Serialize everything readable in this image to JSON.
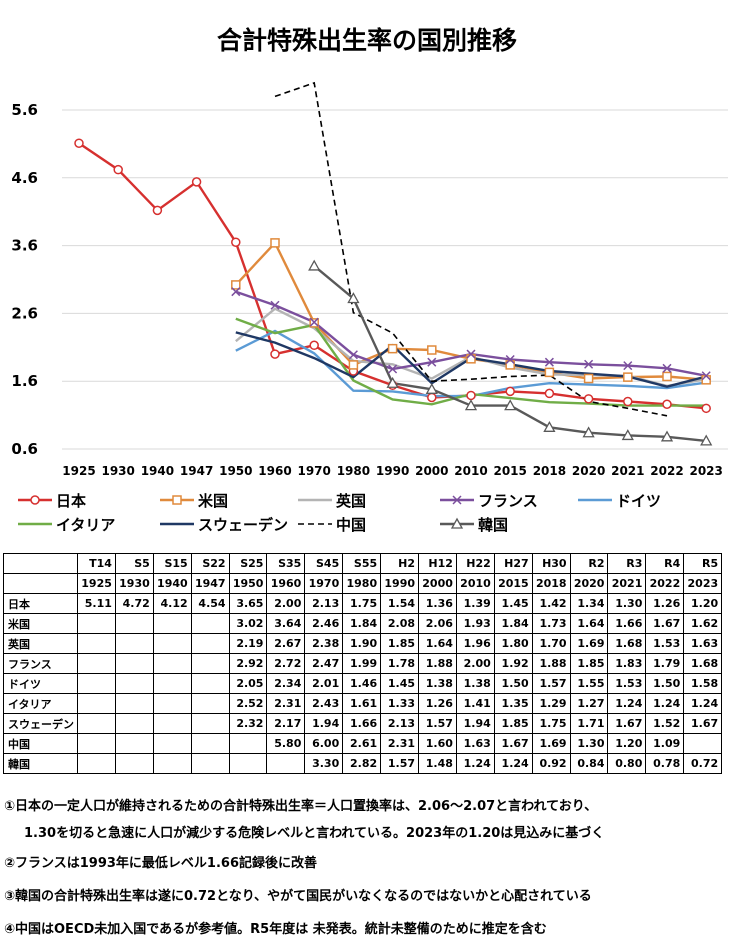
{
  "chart_data": {
    "type": "line",
    "title": "合計特殊出生率の国別推移",
    "ylim": [
      0.6,
      6.0
    ],
    "yticks": [
      "5.6",
      "4.6",
      "3.6",
      "2.6",
      "1.6",
      "0.6"
    ],
    "categories": [
      "1925",
      "1930",
      "1940",
      "1947",
      "1950",
      "1960",
      "1970",
      "1980",
      "1990",
      "2000",
      "2010",
      "2015",
      "2018",
      "2020",
      "2021",
      "2022",
      "2023"
    ],
    "grid": true,
    "legend_position": "bottom",
    "series": [
      {
        "name": "日本",
        "color": "#d6302f",
        "marker": "circle",
        "dash": false,
        "values": [
          5.11,
          4.72,
          4.12,
          4.54,
          3.65,
          2.0,
          2.13,
          1.75,
          1.54,
          1.36,
          1.39,
          1.45,
          1.42,
          1.34,
          1.3,
          1.26,
          1.2
        ]
      },
      {
        "name": "米国",
        "color": "#e08a3c",
        "marker": "square",
        "dash": false,
        "values": [
          null,
          null,
          null,
          null,
          3.02,
          3.64,
          2.46,
          1.84,
          2.08,
          2.06,
          1.93,
          1.84,
          1.73,
          1.64,
          1.66,
          1.67,
          1.62
        ]
      },
      {
        "name": "英国",
        "color": "#b4b4b4",
        "marker": "none",
        "dash": false,
        "values": [
          null,
          null,
          null,
          null,
          2.19,
          2.67,
          2.38,
          1.9,
          1.85,
          1.64,
          1.96,
          1.8,
          1.7,
          1.69,
          1.68,
          1.53,
          1.63
        ]
      },
      {
        "name": "フランス",
        "color": "#7b4f9d",
        "marker": "x",
        "dash": false,
        "values": [
          null,
          null,
          null,
          null,
          2.92,
          2.72,
          2.47,
          1.99,
          1.78,
          1.88,
          2.0,
          1.92,
          1.88,
          1.85,
          1.83,
          1.79,
          1.68
        ]
      },
      {
        "name": "ドイツ",
        "color": "#5b9bd5",
        "marker": "none",
        "dash": false,
        "values": [
          null,
          null,
          null,
          null,
          2.05,
          2.34,
          2.01,
          1.46,
          1.45,
          1.38,
          1.38,
          1.5,
          1.57,
          1.55,
          1.53,
          1.5,
          1.58
        ]
      },
      {
        "name": "イタリア",
        "color": "#70ad47",
        "marker": "none",
        "dash": false,
        "values": [
          null,
          null,
          null,
          null,
          2.52,
          2.31,
          2.43,
          1.61,
          1.33,
          1.26,
          1.41,
          1.35,
          1.29,
          1.27,
          1.24,
          1.24,
          1.24
        ]
      },
      {
        "name": "スウェーデン",
        "color": "#1f3864",
        "marker": "none",
        "dash": false,
        "values": [
          null,
          null,
          null,
          null,
          2.32,
          2.17,
          1.94,
          1.66,
          2.13,
          1.57,
          1.94,
          1.85,
          1.75,
          1.71,
          1.67,
          1.52,
          1.67
        ]
      },
      {
        "name": "中国",
        "color": "#000000",
        "marker": "none",
        "dash": true,
        "values": [
          null,
          null,
          null,
          null,
          null,
          5.8,
          6.0,
          2.61,
          2.31,
          1.6,
          1.63,
          1.67,
          1.69,
          1.3,
          1.2,
          1.09,
          null
        ]
      },
      {
        "name": "韓国",
        "color": "#595959",
        "marker": "triangle",
        "dash": false,
        "values": [
          null,
          null,
          null,
          null,
          null,
          null,
          3.3,
          2.82,
          1.57,
          1.48,
          1.24,
          1.24,
          0.92,
          0.84,
          0.8,
          0.78,
          0.72
        ]
      }
    ]
  },
  "table": {
    "era": [
      "T14",
      "S5",
      "S15",
      "S22",
      "S25",
      "S35",
      "S45",
      "S55",
      "H2",
      "H12",
      "H22",
      "H27",
      "H30",
      "R2",
      "R3",
      "R4",
      "R5"
    ],
    "years": [
      "1925",
      "1930",
      "1940",
      "1947",
      "1950",
      "1960",
      "1970",
      "1980",
      "1990",
      "2000",
      "2010",
      "2015",
      "2018",
      "2020",
      "2021",
      "2022",
      "2023"
    ],
    "rows": [
      {
        "label": "日本",
        "cells": [
          "5.11",
          "4.72",
          "4.12",
          "4.54",
          "3.65",
          "2.00",
          "2.13",
          "1.75",
          "1.54",
          "1.36",
          "1.39",
          "1.45",
          "1.42",
          "1.34",
          "1.30",
          "1.26",
          "1.20"
        ]
      },
      {
        "label": "米国",
        "cells": [
          "",
          "",
          "",
          "",
          "3.02",
          "3.64",
          "2.46",
          "1.84",
          "2.08",
          "2.06",
          "1.93",
          "1.84",
          "1.73",
          "1.64",
          "1.66",
          "1.67",
          "1.62"
        ]
      },
      {
        "label": "英国",
        "cells": [
          "",
          "",
          "",
          "",
          "2.19",
          "2.67",
          "2.38",
          "1.90",
          "1.85",
          "1.64",
          "1.96",
          "1.80",
          "1.70",
          "1.69",
          "1.68",
          "1.53",
          "1.63"
        ]
      },
      {
        "label": "フランス",
        "cells": [
          "",
          "",
          "",
          "",
          "2.92",
          "2.72",
          "2.47",
          "1.99",
          "1.78",
          "1.88",
          "2.00",
          "1.92",
          "1.88",
          "1.85",
          "1.83",
          "1.79",
          "1.68"
        ]
      },
      {
        "label": "ドイツ",
        "cells": [
          "",
          "",
          "",
          "",
          "2.05",
          "2.34",
          "2.01",
          "1.46",
          "1.45",
          "1.38",
          "1.38",
          "1.50",
          "1.57",
          "1.55",
          "1.53",
          "1.50",
          "1.58"
        ]
      },
      {
        "label": "イタリア",
        "cells": [
          "",
          "",
          "",
          "",
          "2.52",
          "2.31",
          "2.43",
          "1.61",
          "1.33",
          "1.26",
          "1.41",
          "1.35",
          "1.29",
          "1.27",
          "1.24",
          "1.24",
          "1.24"
        ]
      },
      {
        "label": "スウェーデン",
        "cells": [
          "",
          "",
          "",
          "",
          "2.32",
          "2.17",
          "1.94",
          "1.66",
          "2.13",
          "1.57",
          "1.94",
          "1.85",
          "1.75",
          "1.71",
          "1.67",
          "1.52",
          "1.67"
        ]
      },
      {
        "label": "中国",
        "cells": [
          "",
          "",
          "",
          "",
          "",
          "5.80",
          "6.00",
          "2.61",
          "2.31",
          "1.60",
          "1.63",
          "1.67",
          "1.69",
          "1.30",
          "1.20",
          "1.09",
          ""
        ]
      },
      {
        "label": "韓国",
        "cells": [
          "",
          "",
          "",
          "",
          "",
          "",
          "3.30",
          "2.82",
          "1.57",
          "1.48",
          "1.24",
          "1.24",
          "0.92",
          "0.84",
          "0.80",
          "0.78",
          "0.72"
        ]
      }
    ]
  },
  "notes": [
    "①日本の一定人口が維持されるための合計特殊出生率＝人口置換率は、2.06～2.07と言われており、",
    "1.30を切ると急速に人口が減少する危険レベルと言われている。2023年の1.20は見込みに基づく",
    "②フランスは1993年に最低レベル1.66記録後に改善",
    "③韓国の合計特殊出生率は遂に0.72となり、やがて国民がいなくなるのではないかと心配されている",
    "④中国はOECD未加入国であるが参考値。R5年度は 未発表。統計未整備のために推定を含む"
  ]
}
